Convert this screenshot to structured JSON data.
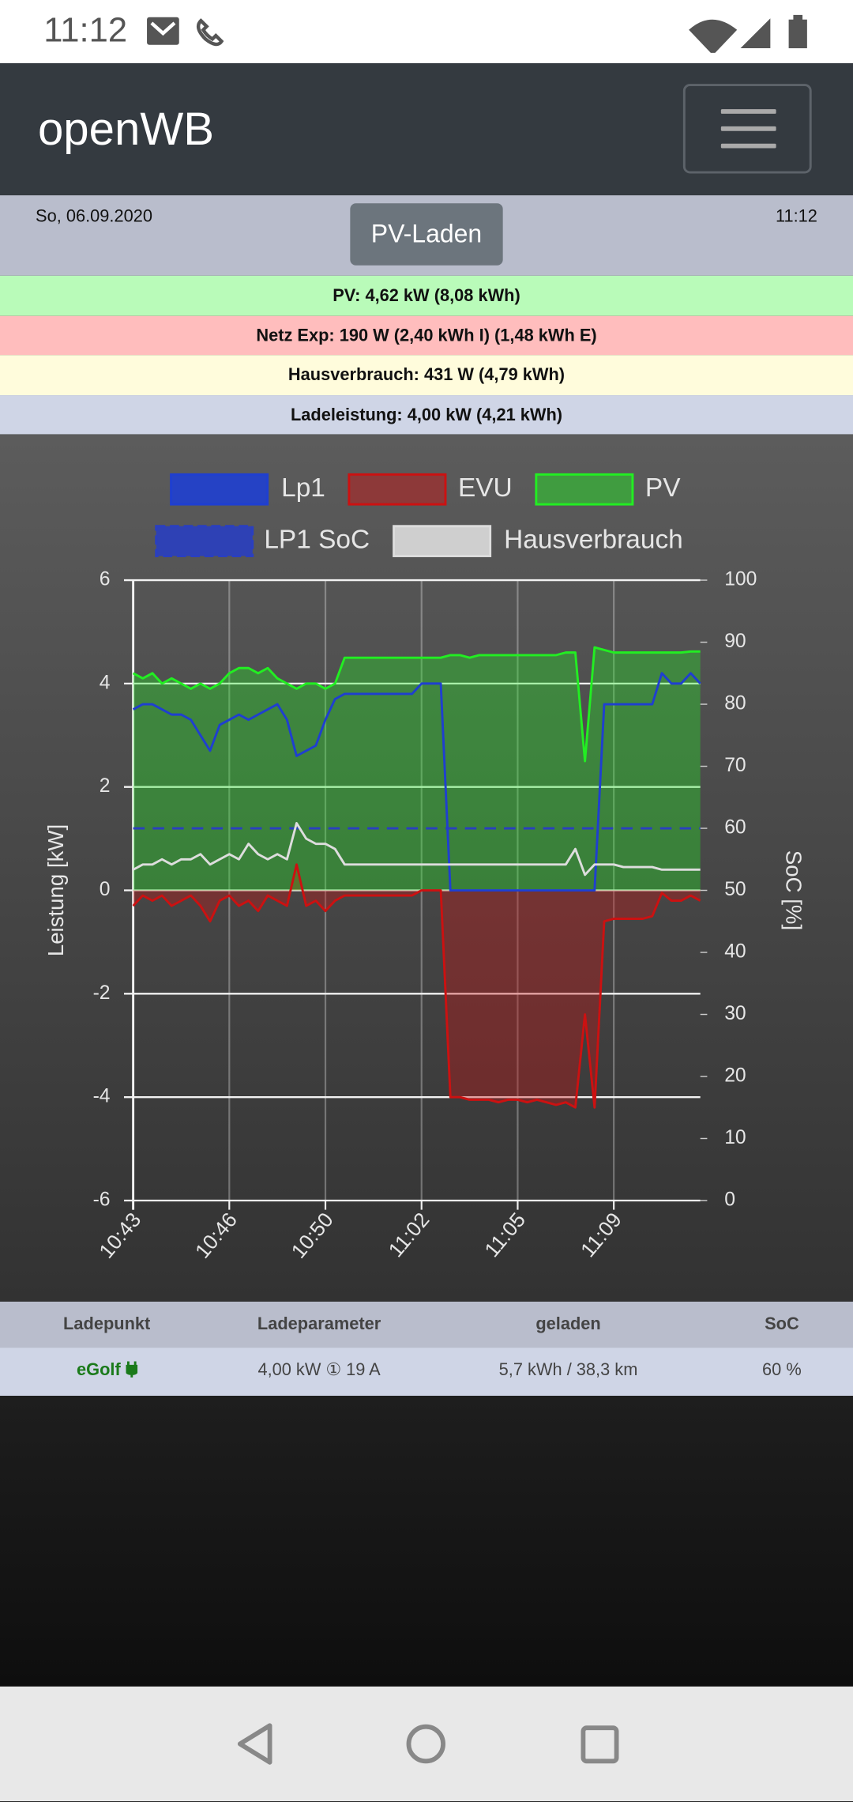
{
  "status_bar": {
    "time": "11:12"
  },
  "navbar": {
    "brand": "openWB"
  },
  "info": {
    "date": "So, 06.09.2020",
    "mode_button": "PV-Laden",
    "time": "11:12"
  },
  "summary": [
    "PV: 4,62 kW (8,08 kWh)",
    "Netz Exp: 190 W (2,40 kWh I) (1,48 kWh E)",
    "Hausverbrauch: 431 W (4,79 kWh)",
    "Ladeleistung: 4,00 kW (4,21 kWh)"
  ],
  "chart_data": {
    "type": "line",
    "categories": [
      "10:43",
      null,
      null,
      null,
      null,
      null,
      null,
      null,
      null,
      null,
      "10:46",
      null,
      null,
      null,
      null,
      null,
      null,
      null,
      null,
      null,
      "10:50",
      null,
      null,
      null,
      null,
      null,
      null,
      null,
      null,
      null,
      "11:02",
      null,
      null,
      null,
      null,
      null,
      null,
      null,
      null,
      null,
      "11:05",
      null,
      null,
      null,
      null,
      null,
      null,
      null,
      null,
      null,
      "11:09",
      null,
      null,
      null,
      null,
      null,
      null,
      null,
      null,
      null
    ],
    "series": [
      {
        "name": "Lp1",
        "color": "#1f3fd0",
        "values": [
          3.5,
          3.6,
          3.6,
          3.5,
          3.4,
          3.4,
          3.3,
          3.0,
          2.7,
          3.2,
          3.3,
          3.4,
          3.3,
          3.4,
          3.5,
          3.6,
          3.3,
          2.6,
          2.7,
          2.8,
          3.3,
          3.7,
          3.8,
          3.8,
          3.8,
          3.8,
          3.8,
          3.8,
          3.8,
          3.8,
          4.0,
          4.0,
          4.0,
          0,
          0,
          0,
          0,
          0,
          0,
          0,
          0,
          0,
          0,
          0,
          0,
          0,
          0,
          0,
          0,
          3.6,
          3.6,
          3.6,
          3.6,
          3.6,
          3.6,
          4.2,
          4.0,
          4.0,
          4.2,
          4.0
        ]
      },
      {
        "name": "EVU",
        "color": "#cc1111",
        "fill": true,
        "values": [
          -0.3,
          -0.1,
          -0.2,
          -0.1,
          -0.3,
          -0.2,
          -0.1,
          -0.3,
          -0.6,
          -0.2,
          -0.1,
          -0.3,
          -0.2,
          -0.4,
          -0.1,
          -0.2,
          -0.3,
          0.5,
          -0.3,
          -0.2,
          -0.4,
          -0.2,
          -0.1,
          -0.1,
          -0.1,
          -0.1,
          -0.1,
          -0.1,
          -0.1,
          -0.1,
          0,
          0,
          0,
          -4.0,
          -4.0,
          -4.05,
          -4.05,
          -4.05,
          -4.1,
          -4.05,
          -4.05,
          -4.1,
          -4.05,
          -4.1,
          -4.15,
          -4.1,
          -4.2,
          -2.4,
          -4.2,
          -0.6,
          -0.55,
          -0.55,
          -0.55,
          -0.55,
          -0.5,
          -0.05,
          -0.2,
          -0.2,
          -0.1,
          -0.2
        ]
      },
      {
        "name": "PV",
        "color": "#22ee22",
        "fill": true,
        "values": [
          4.2,
          4.1,
          4.2,
          4.0,
          4.1,
          4.0,
          3.9,
          4.0,
          3.9,
          4.0,
          4.2,
          4.3,
          4.3,
          4.2,
          4.3,
          4.1,
          4.0,
          3.9,
          4.0,
          4.0,
          3.9,
          4.0,
          4.5,
          4.5,
          4.5,
          4.5,
          4.5,
          4.5,
          4.5,
          4.5,
          4.5,
          4.5,
          4.5,
          4.55,
          4.55,
          4.5,
          4.55,
          4.55,
          4.55,
          4.55,
          4.55,
          4.55,
          4.55,
          4.55,
          4.55,
          4.6,
          4.6,
          2.5,
          4.7,
          4.65,
          4.6,
          4.6,
          4.6,
          4.6,
          4.6,
          4.6,
          4.6,
          4.6,
          4.62,
          4.62
        ]
      },
      {
        "name": "LP1 SoC",
        "color": "#2a3fc0",
        "axis": "y2",
        "dash": true,
        "values": [
          60,
          60,
          60,
          60,
          60,
          60,
          60,
          60,
          60,
          60,
          60,
          60,
          60,
          60,
          60,
          60,
          60,
          60,
          60,
          60,
          60,
          60,
          60,
          60,
          60,
          60,
          60,
          60,
          60,
          60,
          60,
          60,
          60,
          60,
          60,
          60,
          60,
          60,
          60,
          60,
          60,
          60,
          60,
          60,
          60,
          60,
          60,
          60,
          60,
          60,
          60,
          60,
          60,
          60,
          60,
          60,
          60,
          60,
          60,
          60
        ]
      },
      {
        "name": "Hausverbrauch",
        "color": "#dddddd",
        "values": [
          0.4,
          0.5,
          0.5,
          0.6,
          0.5,
          0.6,
          0.6,
          0.7,
          0.5,
          0.6,
          0.7,
          0.6,
          0.9,
          0.7,
          0.6,
          0.7,
          0.6,
          1.3,
          1.0,
          0.9,
          0.9,
          0.8,
          0.5,
          0.5,
          0.5,
          0.5,
          0.5,
          0.5,
          0.5,
          0.5,
          0.5,
          0.5,
          0.5,
          0.5,
          0.5,
          0.5,
          0.5,
          0.5,
          0.5,
          0.5,
          0.5,
          0.5,
          0.5,
          0.5,
          0.5,
          0.5,
          0.8,
          0.3,
          0.5,
          0.5,
          0.5,
          0.45,
          0.45,
          0.45,
          0.45,
          0.4,
          0.4,
          0.4,
          0.4,
          0.4
        ]
      }
    ],
    "ylim": [
      -6,
      6
    ],
    "yticks": [
      -6,
      -4,
      -2,
      0,
      2,
      4,
      6
    ],
    "y2lim": [
      0,
      100
    ],
    "y2ticks": [
      0,
      10,
      20,
      30,
      40,
      50,
      60,
      70,
      80,
      90,
      100
    ],
    "ylabel": "Leistung [kW]",
    "y2label": "SoC [%]",
    "grid": true
  },
  "table": {
    "columns": [
      "Ladepunkt",
      "Ladeparameter",
      "geladen",
      "SoC"
    ],
    "rows": [
      [
        "eGolf",
        "4,00 kW ① 19 A",
        "5,7 kWh / 38,3 km",
        "60 %"
      ]
    ]
  }
}
